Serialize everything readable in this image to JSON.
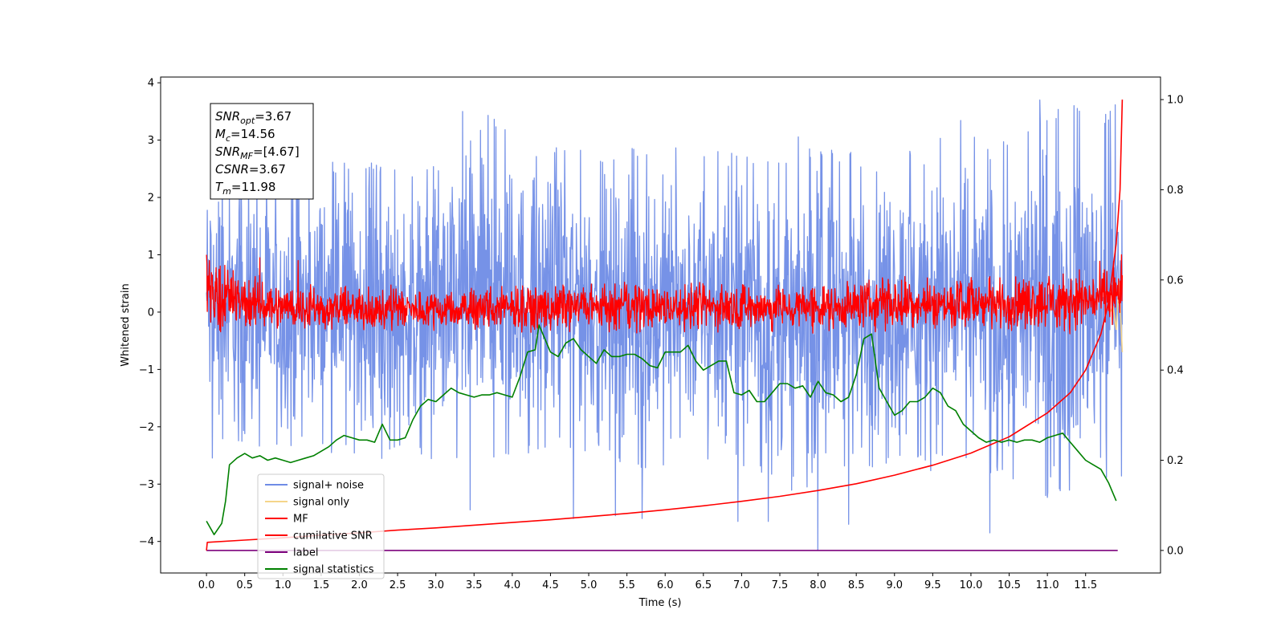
{
  "chart_data": {
    "type": "line",
    "xlabel": "Time (s)",
    "ylabel": "Whitened strain",
    "xlim": [
      -0.6,
      12.48
    ],
    "ylim": [
      -4.55,
      4.1
    ],
    "y2lim": [
      -0.05,
      1.05
    ],
    "xticks": [
      0.0,
      0.5,
      1.0,
      1.5,
      2.0,
      2.5,
      3.0,
      3.5,
      4.0,
      4.5,
      5.0,
      5.5,
      6.0,
      6.5,
      7.0,
      7.5,
      8.0,
      8.5,
      9.0,
      9.5,
      10.0,
      10.5,
      11.0,
      11.5
    ],
    "xtick_labels": [
      "0.0",
      "0.5",
      "1.0",
      "1.5",
      "2.0",
      "2.5",
      "3.0",
      "3.5",
      "4.0",
      "4.5",
      "5.0",
      "5.5",
      "6.0",
      "6.5",
      "7.0",
      "7.5",
      "8.0",
      "8.5",
      "9.0",
      "9.5",
      "10.0",
      "10.5",
      "11.0",
      "11.5"
    ],
    "yticks": [
      -4,
      -3,
      -2,
      -1,
      0,
      1,
      2,
      3,
      4
    ],
    "ytick_labels": [
      "−4",
      "−3",
      "−2",
      "−1",
      "0",
      "1",
      "2",
      "3",
      "4"
    ],
    "y2ticks": [
      0.0,
      0.2,
      0.4,
      0.6,
      0.8,
      1.0
    ],
    "y2tick_labels": [
      "0.0",
      "0.2",
      "0.4",
      "0.6",
      "0.8",
      "1.0"
    ],
    "grid": false,
    "legend_position": "lower-left",
    "colors": {
      "signal_noise": "#6f8ce6",
      "signal_only": "#f5d58a",
      "mf": "#ff0000",
      "cumulative_snr": "#ff0000",
      "label": "#7b007b",
      "signal_statistics": "#008000"
    },
    "series": [
      {
        "name": "signal+ noise",
        "axis": "left",
        "style": "dense-noise",
        "x_range": [
          0.0,
          11.98
        ],
        "band_min": [
          -2.6,
          -2.4,
          -2.4,
          -2.3,
          -2.6,
          -2.5,
          -2.6,
          -2.6,
          -2.5,
          -2.4,
          -2.5,
          -2.8,
          -2.7,
          -2.6,
          -2.9,
          -3.4,
          -2.8,
          -2.7,
          -2.6,
          -2.7,
          -2.9,
          -3.3,
          -3.2,
          -2.9
        ],
        "band_max": [
          2.9,
          2.5,
          2.4,
          2.6,
          2.7,
          2.5,
          2.6,
          3.5,
          2.9,
          2.9,
          2.8,
          2.9,
          2.9,
          2.8,
          2.7,
          2.9,
          2.8,
          2.8,
          3.0,
          3.1,
          3.0,
          3.5,
          3.7,
          3.6
        ],
        "spikes": [
          [
            3.35,
            3.5
          ],
          [
            3.45,
            -3.45
          ],
          [
            4.8,
            -3.6
          ],
          [
            5.35,
            -3.55
          ],
          [
            5.7,
            -3.6
          ],
          [
            6.95,
            -3.65
          ],
          [
            7.35,
            -3.65
          ],
          [
            8.0,
            -4.15
          ],
          [
            8.4,
            -3.7
          ],
          [
            10.25,
            -3.85
          ],
          [
            10.9,
            3.7
          ],
          [
            11.35,
            3.6
          ]
        ]
      },
      {
        "name": "signal only",
        "axis": "left",
        "x": [
          11.82,
          11.86,
          11.9,
          11.94,
          11.98
        ],
        "values": [
          0.0,
          0.1,
          -0.3,
          0.5,
          -0.7
        ]
      },
      {
        "name": "MF",
        "axis": "left",
        "style": "dense-noise",
        "x_range": [
          0.0,
          11.98
        ],
        "band_min": [
          -0.35,
          -0.35,
          -0.35,
          -0.35,
          -0.35,
          -0.35,
          -0.35,
          -0.35,
          -0.35,
          -0.35,
          -0.35,
          -0.35,
          -0.35,
          -0.35,
          -0.35,
          -0.35,
          -0.35,
          -0.35,
          -0.35,
          -0.35,
          -0.35,
          -0.35,
          -0.35,
          -0.35
        ],
        "band_max": [
          1.0,
          0.7,
          0.55,
          0.45,
          0.45,
          0.45,
          0.45,
          0.45,
          0.5,
          0.5,
          0.5,
          0.55,
          0.5,
          0.55,
          0.5,
          0.55,
          0.55,
          0.7,
          0.6,
          0.6,
          0.65,
          0.75,
          0.75,
          0.95
        ],
        "spikes": [
          [
            0.0,
            1.0
          ],
          [
            0.7,
            0.95
          ],
          [
            1.2,
            0.9
          ],
          [
            11.97,
            1.0
          ]
        ]
      },
      {
        "name": "cumilative SNR",
        "axis": "right",
        "x": [
          0.0,
          0.01,
          0.5,
          1.0,
          1.5,
          2.0,
          2.5,
          3.0,
          3.5,
          4.0,
          4.5,
          5.0,
          5.5,
          6.0,
          6.5,
          7.0,
          7.5,
          8.0,
          8.5,
          9.0,
          9.5,
          10.0,
          10.5,
          11.0,
          11.3,
          11.5,
          11.7,
          11.8,
          11.9,
          11.95,
          11.98
        ],
        "values": [
          0.0,
          0.018,
          0.023,
          0.028,
          0.034,
          0.039,
          0.045,
          0.05,
          0.056,
          0.062,
          0.068,
          0.075,
          0.082,
          0.09,
          0.099,
          0.109,
          0.12,
          0.133,
          0.148,
          0.167,
          0.189,
          0.216,
          0.252,
          0.305,
          0.35,
          0.4,
          0.48,
          0.55,
          0.68,
          0.8,
          1.0
        ]
      },
      {
        "name": "label",
        "axis": "right",
        "x": [
          0.0,
          11.92
        ],
        "values": [
          0.0,
          0.0
        ]
      },
      {
        "name": "signal statistics",
        "axis": "right",
        "x": [
          0.0,
          0.1,
          0.2,
          0.25,
          0.3,
          0.4,
          0.5,
          0.6,
          0.7,
          0.8,
          0.9,
          1.0,
          1.1,
          1.2,
          1.3,
          1.4,
          1.5,
          1.6,
          1.7,
          1.8,
          1.9,
          2.0,
          2.1,
          2.2,
          2.3,
          2.4,
          2.5,
          2.6,
          2.7,
          2.8,
          2.9,
          3.0,
          3.1,
          3.2,
          3.3,
          3.4,
          3.5,
          3.6,
          3.7,
          3.8,
          3.9,
          4.0,
          4.1,
          4.2,
          4.3,
          4.35,
          4.4,
          4.5,
          4.6,
          4.7,
          4.8,
          4.9,
          5.0,
          5.1,
          5.2,
          5.3,
          5.4,
          5.5,
          5.6,
          5.7,
          5.8,
          5.9,
          6.0,
          6.1,
          6.2,
          6.3,
          6.4,
          6.5,
          6.6,
          6.7,
          6.8,
          6.9,
          7.0,
          7.1,
          7.2,
          7.3,
          7.4,
          7.5,
          7.6,
          7.7,
          7.8,
          7.9,
          8.0,
          8.1,
          8.2,
          8.3,
          8.4,
          8.5,
          8.6,
          8.7,
          8.8,
          8.9,
          9.0,
          9.1,
          9.2,
          9.3,
          9.4,
          9.5,
          9.6,
          9.7,
          9.8,
          9.9,
          10.0,
          10.1,
          10.2,
          10.3,
          10.4,
          10.5,
          10.6,
          10.7,
          10.8,
          10.9,
          11.0,
          11.1,
          11.2,
          11.3,
          11.4,
          11.5,
          11.6,
          11.7,
          11.8,
          11.9
        ],
        "values": [
          0.065,
          0.035,
          0.06,
          0.11,
          0.19,
          0.205,
          0.215,
          0.205,
          0.21,
          0.2,
          0.205,
          0.2,
          0.195,
          0.2,
          0.205,
          0.21,
          0.22,
          0.23,
          0.245,
          0.255,
          0.25,
          0.245,
          0.245,
          0.24,
          0.28,
          0.245,
          0.245,
          0.25,
          0.29,
          0.32,
          0.335,
          0.33,
          0.345,
          0.36,
          0.35,
          0.345,
          0.34,
          0.345,
          0.345,
          0.35,
          0.345,
          0.34,
          0.385,
          0.44,
          0.445,
          0.5,
          0.48,
          0.44,
          0.43,
          0.46,
          0.47,
          0.445,
          0.43,
          0.415,
          0.445,
          0.43,
          0.43,
          0.435,
          0.435,
          0.425,
          0.41,
          0.405,
          0.44,
          0.44,
          0.44,
          0.455,
          0.42,
          0.4,
          0.41,
          0.42,
          0.42,
          0.35,
          0.345,
          0.355,
          0.33,
          0.33,
          0.35,
          0.37,
          0.37,
          0.36,
          0.365,
          0.34,
          0.375,
          0.35,
          0.345,
          0.33,
          0.34,
          0.39,
          0.47,
          0.48,
          0.36,
          0.33,
          0.3,
          0.31,
          0.33,
          0.33,
          0.34,
          0.36,
          0.35,
          0.32,
          0.31,
          0.28,
          0.265,
          0.25,
          0.24,
          0.245,
          0.24,
          0.245,
          0.24,
          0.245,
          0.245,
          0.24,
          0.25,
          0.255,
          0.26,
          0.24,
          0.22,
          0.2,
          0.19,
          0.18,
          0.15,
          0.11
        ]
      }
    ],
    "annotation": {
      "lines": [
        {
          "sym": "SNR",
          "sub": "opt",
          "value": "=3.67"
        },
        {
          "sym": "M",
          "sub": "c",
          "value": "=14.56"
        },
        {
          "sym": "SNR",
          "sub": "MF",
          "value": "=[4.67]"
        },
        {
          "sym": "CSNR",
          "sub": "",
          "value": "=3.67"
        },
        {
          "sym": "T",
          "sub": "m",
          "value": "=11.98"
        }
      ]
    }
  }
}
